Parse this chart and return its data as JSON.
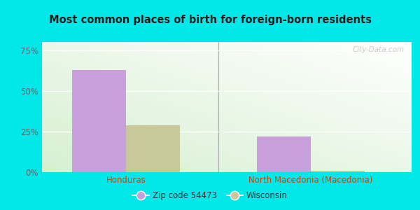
{
  "title": "Most common places of birth for foreign-born residents",
  "categories": [
    "Honduras",
    "North Macedonia (Macedonia)"
  ],
  "zip_values": [
    0.63,
    0.22
  ],
  "wi_values": [
    0.29,
    0.01
  ],
  "zip_color": "#c9a0dc",
  "wi_color": "#c8c89a",
  "zip_label": "Zip code 54473",
  "wi_label": "Wisconsin",
  "yticks": [
    0.0,
    0.25,
    0.5,
    0.75
  ],
  "ytick_labels": [
    "0%",
    "25%",
    "50%",
    "75%"
  ],
  "outer_bg": "#00e8e8",
  "inner_bg_topleft": "#d8efd0",
  "inner_bg_bottomright": "#f0faf0",
  "title_color": "#1a1a1a",
  "xlabel_color": "#cc4400",
  "ytick_color": "#666666",
  "watermark": "City-Data.com",
  "bar_width": 0.32,
  "separator_color": "#aaaaaa"
}
